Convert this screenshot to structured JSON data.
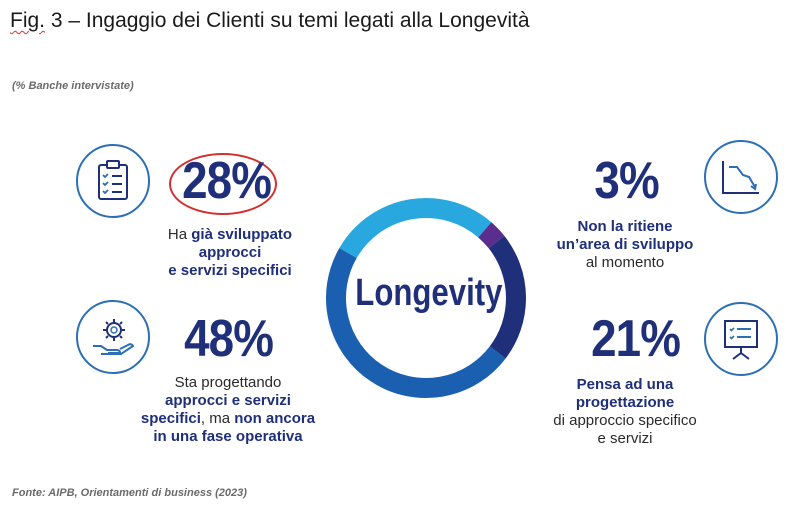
{
  "title": {
    "prefix": "Fig.",
    "rest": " 3 – Ingaggio dei Clienti su temi legati alla Longevità"
  },
  "subtitle": "(% Banche intervistate)",
  "center_label": "Longevity",
  "source": "Fonte: AIPB, Orientamenti di business (2023)",
  "items": [
    {
      "value_label": "28%",
      "desc_pre": "Ha ",
      "desc_bold": "già sviluppato",
      "desc_bold2": "approcci",
      "desc_bold3": "e servizi specifici",
      "icon": "clipboard-checklist-icon"
    },
    {
      "value_label": "48%",
      "desc_l1": "Sta progettando",
      "desc_l2": "approcci e servizi",
      "desc_l3_bold": "specifici",
      "desc_l3_mid": ", ma ",
      "desc_l3_bold2": "non ancora",
      "desc_l4": "in una fase operativa",
      "icon": "gear-hand-icon"
    },
    {
      "value_label": "3%",
      "desc_l1": "Non la ritiene",
      "desc_l2": "un’area di sviluppo",
      "desc_l3": "al momento",
      "icon": "declining-chart-icon"
    },
    {
      "value_label": "21%",
      "desc_l1": "Pensa ad una",
      "desc_l2": "progettazione",
      "desc_l3": "di approccio specifico",
      "desc_l4": "e servizi",
      "icon": "presentation-board-icon"
    }
  ],
  "colors": {
    "dark_blue": "#1f2f7a",
    "light_blue": "#29a8e0",
    "mid_blue": "#1b5fb0",
    "purple": "#5b2d8e",
    "highlight": "#d32f2f"
  },
  "chart_data": {
    "type": "pie",
    "categories": [
      "Ha già sviluppato approcci e servizi specifici",
      "Sta progettando approcci e servizi specifici, ma non ancora in una fase operativa",
      "Non la ritiene un’area di sviluppo al momento",
      "Pensa ad una progettazione di approccio specifico e servizi"
    ],
    "values": [
      28,
      48,
      3,
      21
    ],
    "unit": "%"
  }
}
